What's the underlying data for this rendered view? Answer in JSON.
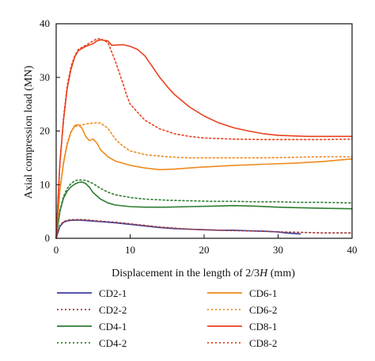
{
  "chart_data": {
    "type": "line",
    "title": "",
    "xlabel_prefix": "Displacement in the length of 2/3",
    "xlabel_italic": "H",
    "xlabel_suffix": " (mm)",
    "ylabel": "Axial compression load (MN)",
    "xlim": [
      0,
      40
    ],
    "ylim": [
      0,
      40
    ],
    "xticks": [
      0,
      10,
      20,
      30,
      40
    ],
    "yticks": [
      0,
      10,
      20,
      30,
      40
    ],
    "grid": false,
    "legend_position": "bottom",
    "series": [
      {
        "name": "CD2-1",
        "color": "#3d3d9e",
        "dash": "solid",
        "points": [
          [
            0,
            0
          ],
          [
            0.5,
            2.2
          ],
          [
            1,
            3.0
          ],
          [
            1.5,
            3.25
          ],
          [
            2,
            3.35
          ],
          [
            3,
            3.4
          ],
          [
            4,
            3.3
          ],
          [
            5,
            3.2
          ],
          [
            6,
            3.1
          ],
          [
            8,
            2.9
          ],
          [
            10,
            2.6
          ],
          [
            12,
            2.3
          ],
          [
            14,
            2.0
          ],
          [
            16,
            1.8
          ],
          [
            18,
            1.7
          ],
          [
            20,
            1.6
          ],
          [
            22,
            1.5
          ],
          [
            24,
            1.5
          ],
          [
            26,
            1.4
          ],
          [
            28,
            1.35
          ],
          [
            30,
            1.2
          ],
          [
            31,
            1.0
          ],
          [
            32,
            0.9
          ],
          [
            33,
            0.8
          ]
        ]
      },
      {
        "name": "CD2-2",
        "color": "#9e3d3d",
        "dash": "dotted",
        "points": [
          [
            0,
            0
          ],
          [
            0.5,
            2.4
          ],
          [
            1,
            3.1
          ],
          [
            1.5,
            3.35
          ],
          [
            2,
            3.45
          ],
          [
            3,
            3.5
          ],
          [
            4,
            3.45
          ],
          [
            5,
            3.3
          ],
          [
            6,
            3.2
          ],
          [
            8,
            3.0
          ],
          [
            10,
            2.7
          ],
          [
            12,
            2.4
          ],
          [
            14,
            2.1
          ],
          [
            16,
            1.9
          ],
          [
            18,
            1.7
          ],
          [
            20,
            1.6
          ],
          [
            22,
            1.5
          ],
          [
            25,
            1.4
          ],
          [
            28,
            1.3
          ],
          [
            30,
            1.2
          ],
          [
            33,
            1.1
          ],
          [
            36,
            1.0
          ],
          [
            40,
            1.0
          ]
        ]
      },
      {
        "name": "CD4-1",
        "color": "#2e7d32",
        "dash": "solid",
        "points": [
          [
            0,
            0
          ],
          [
            0.5,
            5.0
          ],
          [
            1,
            7.5
          ],
          [
            1.5,
            8.8
          ],
          [
            2,
            9.6
          ],
          [
            2.5,
            10.1
          ],
          [
            3,
            10.4
          ],
          [
            3.5,
            10.5
          ],
          [
            4,
            10.2
          ],
          [
            4.5,
            9.5
          ],
          [
            5,
            8.5
          ],
          [
            6,
            7.3
          ],
          [
            7,
            6.6
          ],
          [
            8,
            6.2
          ],
          [
            10,
            5.9
          ],
          [
            12,
            5.8
          ],
          [
            15,
            5.8
          ],
          [
            18,
            5.9
          ],
          [
            21,
            6.0
          ],
          [
            24,
            6.1
          ],
          [
            27,
            6.0
          ],
          [
            30,
            5.8
          ],
          [
            33,
            5.7
          ],
          [
            36,
            5.6
          ],
          [
            40,
            5.5
          ]
        ]
      },
      {
        "name": "CD4-2",
        "color": "#2e7d32",
        "dash": "dotted",
        "points": [
          [
            0,
            0
          ],
          [
            0.5,
            5.2
          ],
          [
            1,
            7.8
          ],
          [
            1.5,
            9.3
          ],
          [
            2,
            10.2
          ],
          [
            2.5,
            10.7
          ],
          [
            3,
            10.9
          ],
          [
            4,
            10.8
          ],
          [
            5,
            10.2
          ],
          [
            6,
            9.3
          ],
          [
            7,
            8.6
          ],
          [
            8,
            8.1
          ],
          [
            10,
            7.6
          ],
          [
            12,
            7.3
          ],
          [
            15,
            7.1
          ],
          [
            18,
            7.0
          ],
          [
            21,
            6.9
          ],
          [
            24,
            6.9
          ],
          [
            27,
            6.8
          ],
          [
            30,
            6.8
          ],
          [
            33,
            6.7
          ],
          [
            36,
            6.7
          ],
          [
            40,
            6.6
          ]
        ]
      },
      {
        "name": "CD6-1",
        "color": "#ef8a1f",
        "dash": "solid",
        "points": [
          [
            0,
            0
          ],
          [
            0.5,
            9.0
          ],
          [
            1,
            14.0
          ],
          [
            1.5,
            17.5
          ],
          [
            2,
            19.8
          ],
          [
            2.5,
            21.0
          ],
          [
            3,
            21.2
          ],
          [
            3.5,
            20.5
          ],
          [
            4,
            19.0
          ],
          [
            4.5,
            18.2
          ],
          [
            5,
            18.5
          ],
          [
            5.5,
            17.8
          ],
          [
            6,
            16.5
          ],
          [
            7,
            15.2
          ],
          [
            8,
            14.4
          ],
          [
            10,
            13.6
          ],
          [
            12,
            13.1
          ],
          [
            14,
            12.8
          ],
          [
            16,
            12.9
          ],
          [
            18,
            13.1
          ],
          [
            20,
            13.3
          ],
          [
            24,
            13.6
          ],
          [
            28,
            13.8
          ],
          [
            32,
            14.0
          ],
          [
            36,
            14.3
          ],
          [
            40,
            14.8
          ]
        ]
      },
      {
        "name": "CD6-2",
        "color": "#ef8a1f",
        "dash": "dotted",
        "points": [
          [
            0,
            0
          ],
          [
            0.5,
            9.0
          ],
          [
            1,
            14.2
          ],
          [
            1.5,
            17.8
          ],
          [
            2,
            19.9
          ],
          [
            2.5,
            20.8
          ],
          [
            3,
            21.0
          ],
          [
            4,
            21.3
          ],
          [
            5,
            21.5
          ],
          [
            6,
            21.5
          ],
          [
            7,
            20.5
          ],
          [
            8,
            18.5
          ],
          [
            9,
            17.2
          ],
          [
            10,
            16.3
          ],
          [
            12,
            15.6
          ],
          [
            15,
            15.2
          ],
          [
            18,
            15.0
          ],
          [
            21,
            15.0
          ],
          [
            24,
            15.0
          ],
          [
            28,
            15.0
          ],
          [
            32,
            15.1
          ],
          [
            36,
            15.2
          ],
          [
            40,
            15.2
          ]
        ]
      },
      {
        "name": "CD8-1",
        "color": "#e8421e",
        "dash": "solid",
        "points": [
          [
            0,
            0
          ],
          [
            0.5,
            14.0
          ],
          [
            1,
            22.0
          ],
          [
            1.5,
            28.0
          ],
          [
            2,
            31.5
          ],
          [
            2.5,
            33.8
          ],
          [
            3,
            35.0
          ],
          [
            4,
            35.8
          ],
          [
            5,
            36.3
          ],
          [
            5.5,
            36.8
          ],
          [
            6,
            37.0
          ],
          [
            7,
            36.8
          ],
          [
            7.5,
            36.0
          ],
          [
            8,
            36.0
          ],
          [
            9,
            36.1
          ],
          [
            10,
            35.8
          ],
          [
            11,
            35.2
          ],
          [
            12,
            34.0
          ],
          [
            13,
            32.0
          ],
          [
            14,
            30.0
          ],
          [
            15,
            28.3
          ],
          [
            16,
            26.8
          ],
          [
            18,
            24.5
          ],
          [
            20,
            22.8
          ],
          [
            22,
            21.5
          ],
          [
            24,
            20.6
          ],
          [
            26,
            20.0
          ],
          [
            28,
            19.5
          ],
          [
            30,
            19.2
          ],
          [
            34,
            19.0
          ],
          [
            40,
            19.0
          ]
        ]
      },
      {
        "name": "CD8-2",
        "color": "#e8421e",
        "dash": "dotted",
        "points": [
          [
            0,
            0
          ],
          [
            0.5,
            14.0
          ],
          [
            1,
            22.5
          ],
          [
            1.5,
            28.5
          ],
          [
            2,
            32.0
          ],
          [
            2.5,
            34.0
          ],
          [
            3,
            35.2
          ],
          [
            4,
            36.0
          ],
          [
            5,
            36.8
          ],
          [
            5.5,
            37.2
          ],
          [
            6,
            37.2
          ],
          [
            7,
            36.5
          ],
          [
            8,
            33.0
          ],
          [
            9,
            29.0
          ],
          [
            9.5,
            26.8
          ],
          [
            10,
            25.0
          ],
          [
            11,
            23.5
          ],
          [
            12,
            22.0
          ],
          [
            14,
            20.4
          ],
          [
            16,
            19.5
          ],
          [
            18,
            19.0
          ],
          [
            20,
            18.7
          ],
          [
            24,
            18.5
          ],
          [
            28,
            18.4
          ],
          [
            32,
            18.4
          ],
          [
            36,
            18.4
          ],
          [
            40,
            18.5
          ]
        ]
      }
    ]
  }
}
